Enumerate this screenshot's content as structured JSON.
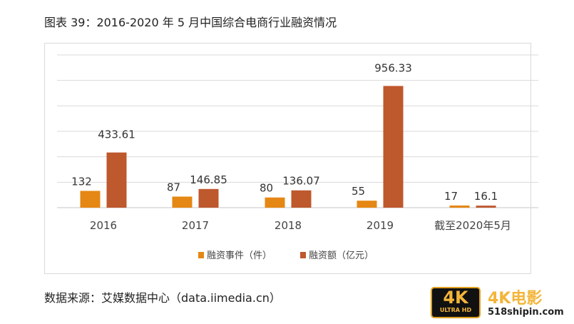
{
  "title": "图表 39：2016-2020 年 5 月中国综合电商行业融资情况",
  "source": "数据来源：艾媒数据中心（data.iimedia.cn）",
  "logo": {
    "badge_big": "4K",
    "badge_small": "ULTRA HD",
    "brand": "4K电影",
    "url": "518shipin.com"
  },
  "chart_data": {
    "type": "bar",
    "title": "",
    "categories": [
      "2016",
      "2017",
      "2018",
      "2019",
      "截至2020年5月"
    ],
    "series": [
      {
        "name": "融资事件（件）",
        "color": "#E58714",
        "values": [
          132,
          87,
          80,
          55,
          17
        ],
        "labels": [
          "132",
          "87",
          "80",
          "55",
          "17"
        ]
      },
      {
        "name": "融资额（亿元）",
        "color": "#BE582D",
        "values": [
          433.61,
          146.85,
          136.07,
          956.33,
          16.1
        ],
        "labels": [
          "433.61",
          "146.85",
          "136.07",
          "956.33",
          "16.1"
        ]
      }
    ],
    "ylim": [
      0,
      1200
    ],
    "ytick_step": 200,
    "y_axis_labels_shown": false,
    "grid": true,
    "gridline_color": "#d9d9d9",
    "legend_position": "bottom"
  }
}
